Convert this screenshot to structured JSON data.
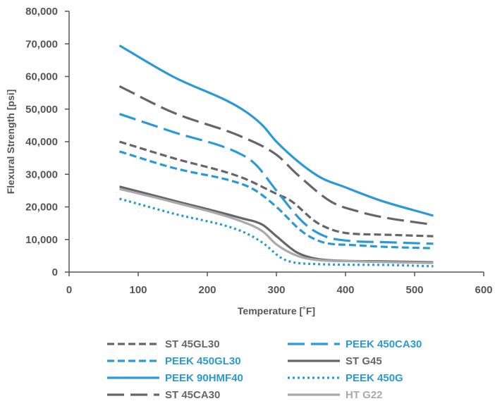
{
  "chart_data": {
    "type": "line",
    "title": "",
    "xlabel": "Temperature [˚F]",
    "ylabel": "Flexural Strength [psi]",
    "xlim": [
      0,
      600
    ],
    "ylim": [
      0,
      80000
    ],
    "x_ticks": [
      0,
      100,
      200,
      300,
      400,
      500,
      600
    ],
    "x_tick_labels": [
      "0",
      "100",
      "200",
      "300",
      "400",
      "500",
      "600"
    ],
    "y_ticks": [
      0,
      10000,
      20000,
      30000,
      40000,
      50000,
      60000,
      70000,
      80000
    ],
    "y_tick_labels": [
      "0",
      "10,000",
      "20,000",
      "30,000",
      "40,000",
      "50,000",
      "60,000",
      "70,000",
      "80,000"
    ],
    "grid": false,
    "legend_position": "bottom",
    "colors": {
      "blue": "#2a9ad6",
      "dark_gray": "#666669",
      "light_gray": "#aaaaad"
    },
    "series": [
      {
        "name": "ST 45GL30",
        "color": "#666669",
        "style": "short-dash",
        "points": [
          [
            73,
            40000
          ],
          [
            150,
            35000
          ],
          [
            250,
            29000
          ],
          [
            300,
            24000
          ],
          [
            320,
            22000
          ],
          [
            360,
            15000
          ],
          [
            400,
            12000
          ],
          [
            450,
            11500
          ],
          [
            527,
            11000
          ]
        ]
      },
      {
        "name": "PEEK 450CA30",
        "color": "#2a9ad6",
        "style": "long-dash",
        "points": [
          [
            73,
            48500
          ],
          [
            150,
            43000
          ],
          [
            250,
            36000
          ],
          [
            270,
            33000
          ],
          [
            300,
            25000
          ],
          [
            340,
            15000
          ],
          [
            370,
            11000
          ],
          [
            410,
            9500
          ],
          [
            450,
            9200
          ],
          [
            527,
            8700
          ]
        ]
      },
      {
        "name": "PEEK 450GL30",
        "color": "#2a9ad6",
        "style": "short-dash",
        "points": [
          [
            73,
            37000
          ],
          [
            150,
            32000
          ],
          [
            250,
            27000
          ],
          [
            270,
            25000
          ],
          [
            300,
            20000
          ],
          [
            340,
            12000
          ],
          [
            370,
            9000
          ],
          [
            410,
            8300
          ],
          [
            450,
            7800
          ],
          [
            527,
            7300
          ]
        ]
      },
      {
        "name": "ST G45",
        "color": "#666669",
        "style": "solid",
        "points": [
          [
            73,
            26200
          ],
          [
            150,
            22000
          ],
          [
            250,
            16500
          ],
          [
            280,
            14500
          ],
          [
            300,
            11000
          ],
          [
            330,
            6000
          ],
          [
            360,
            4000
          ],
          [
            410,
            3400
          ],
          [
            450,
            3300
          ],
          [
            527,
            3000
          ]
        ]
      },
      {
        "name": "PEEK 90HMF40",
        "color": "#2a9ad6",
        "style": "solid",
        "points": [
          [
            73,
            69500
          ],
          [
            150,
            60000
          ],
          [
            250,
            50000
          ],
          [
            280,
            45000
          ],
          [
            300,
            40000
          ],
          [
            360,
            29500
          ],
          [
            400,
            26000
          ],
          [
            450,
            22000
          ],
          [
            527,
            17300
          ]
        ]
      },
      {
        "name": "PEEK 450G",
        "color": "#2a9ad6",
        "style": "dotted",
        "points": [
          [
            73,
            22500
          ],
          [
            150,
            18000
          ],
          [
            250,
            12500
          ],
          [
            280,
            9000
          ],
          [
            310,
            4000
          ],
          [
            350,
            2500
          ],
          [
            450,
            2200
          ],
          [
            527,
            1800
          ]
        ]
      },
      {
        "name": "ST 45CA30",
        "color": "#666669",
        "style": "long-dash",
        "points": [
          [
            73,
            57000
          ],
          [
            150,
            49000
          ],
          [
            250,
            41500
          ],
          [
            300,
            36000
          ],
          [
            330,
            30000
          ],
          [
            380,
            21500
          ],
          [
            420,
            18500
          ],
          [
            450,
            17000
          ],
          [
            527,
            14500
          ]
        ]
      },
      {
        "name": "HT G22",
        "color": "#aaaaad",
        "style": "solid",
        "points": [
          [
            73,
            25500
          ],
          [
            150,
            21500
          ],
          [
            250,
            15500
          ],
          [
            280,
            12500
          ],
          [
            300,
            8500
          ],
          [
            330,
            5000
          ],
          [
            360,
            3700
          ],
          [
            410,
            3300
          ],
          [
            450,
            3100
          ],
          [
            527,
            2800
          ]
        ]
      }
    ]
  }
}
